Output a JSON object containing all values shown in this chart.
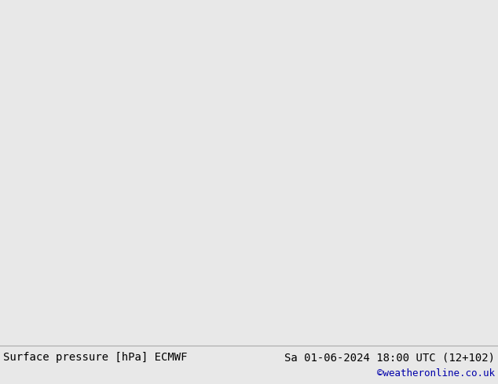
{
  "title_left": "Surface pressure [hPa] ECMWF",
  "title_right": "Sa 01-06-2024 18:00 UTC (12+102)",
  "copyright": "©weatheronline.co.uk",
  "bg_color": "#e8e8e8",
  "land_color": "#c8e6a0",
  "sea_color": "#f8f8f8",
  "contour_color_blue": "#0000cc",
  "contour_color_red": "#cc0000",
  "contour_color_black": "#000000",
  "contour_color_gray": "#888888",
  "text_color_left": "#000000",
  "text_color_right": "#000000",
  "copyright_color": "#0000aa",
  "font_size_bottom": 10,
  "font_size_copyright": 9,
  "figsize": [
    6.34,
    4.9
  ],
  "dpi": 100,
  "lon_min": -20,
  "lon_max": 60,
  "lat_min": -40,
  "lat_max": 40
}
